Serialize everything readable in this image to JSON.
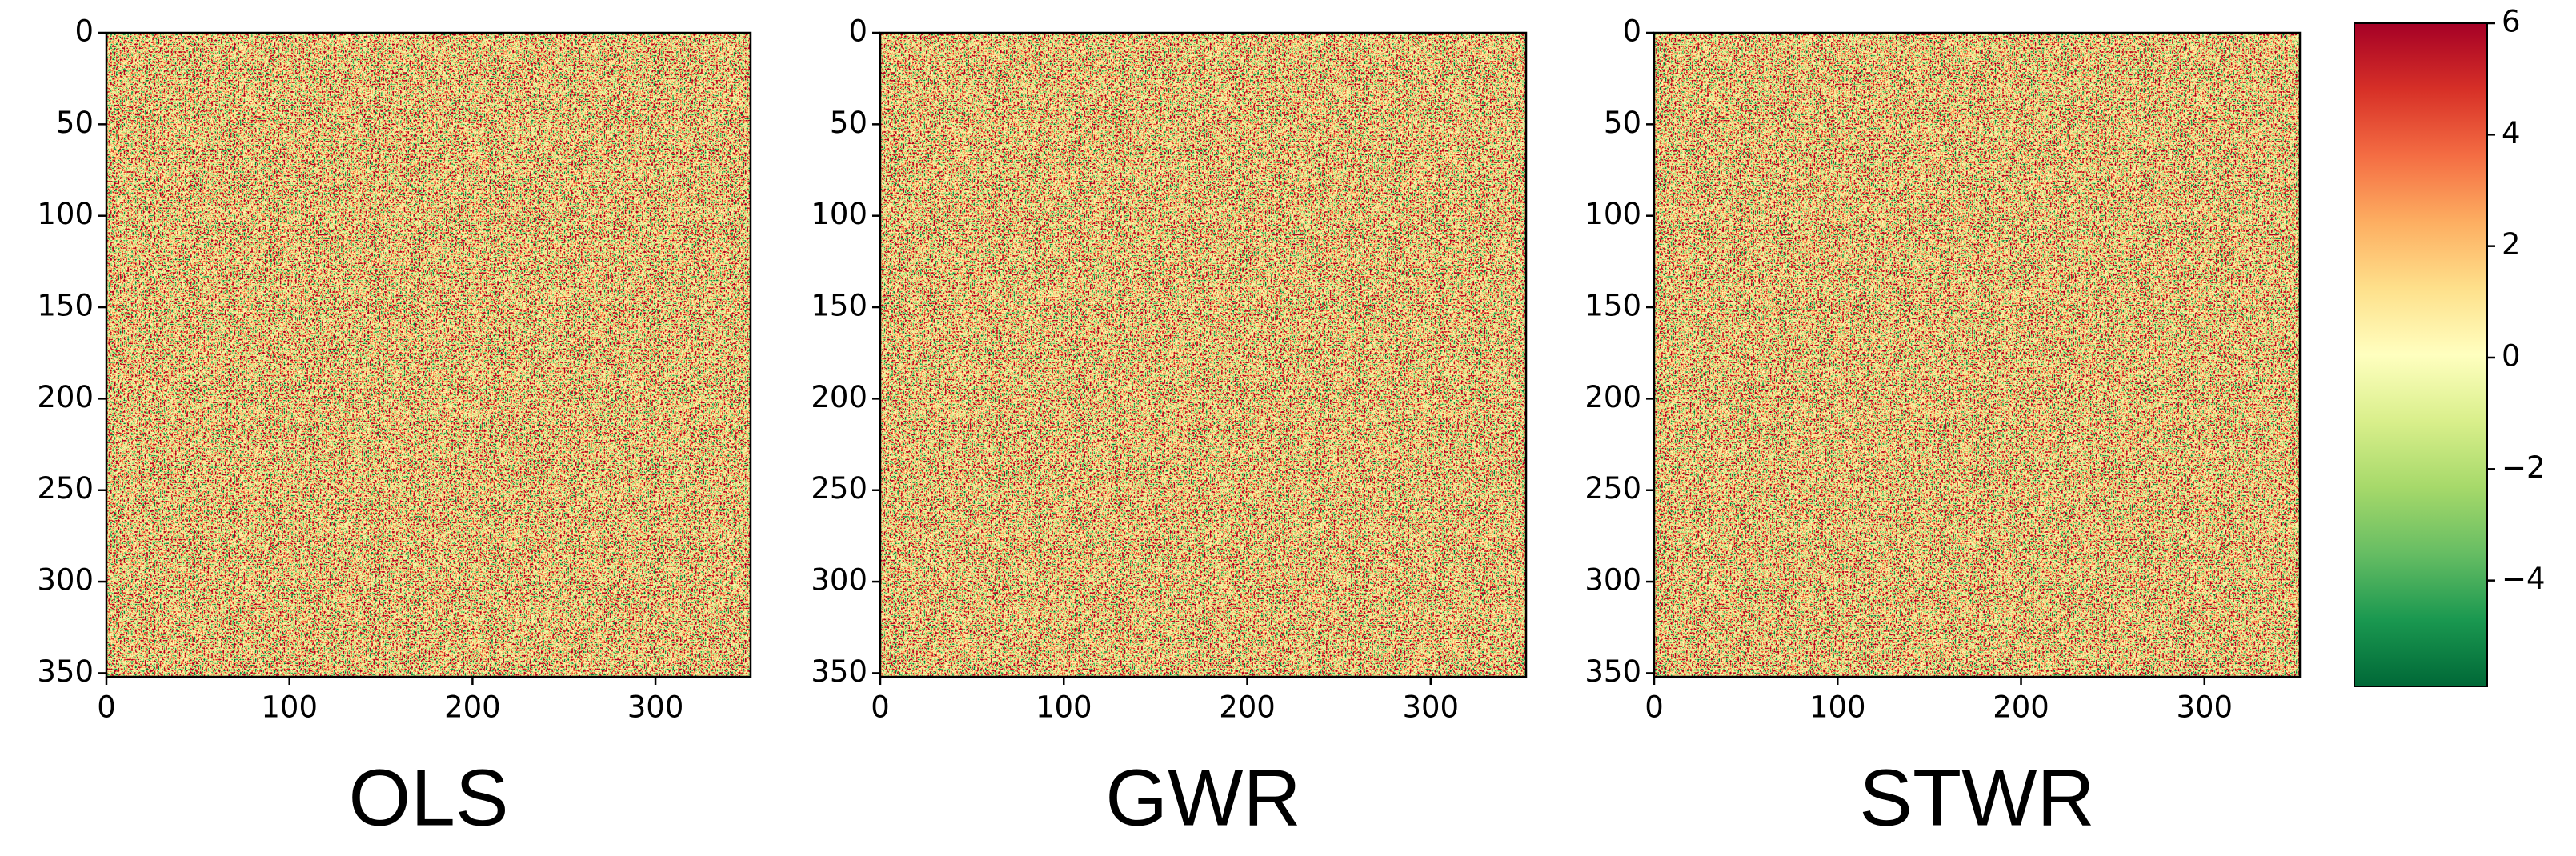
{
  "chart_data": [
    {
      "type": "heatmap",
      "title": "OLS",
      "xlim": [
        0,
        352
      ],
      "ylim": [
        0,
        352
      ],
      "xticks": [
        0,
        100,
        200,
        300
      ],
      "yticks": [
        0,
        50,
        100,
        150,
        200,
        250,
        300,
        350
      ]
    },
    {
      "type": "heatmap",
      "title": "GWR",
      "xlim": [
        0,
        352
      ],
      "ylim": [
        0,
        352
      ],
      "xticks": [
        0,
        100,
        200,
        300
      ],
      "yticks": [
        0,
        50,
        100,
        150,
        200,
        250,
        300,
        350
      ]
    },
    {
      "type": "heatmap",
      "title": "STWR",
      "xlim": [
        0,
        352
      ],
      "ylim": [
        0,
        352
      ],
      "xticks": [
        0,
        100,
        200,
        300
      ],
      "yticks": [
        0,
        50,
        100,
        150,
        200,
        250,
        300,
        350
      ]
    }
  ],
  "colorbar": {
    "clim": [
      -5.9,
      6
    ],
    "ticks": [
      {
        "value": -4,
        "label": "−4"
      },
      {
        "value": -2,
        "label": "−2"
      },
      0,
      2,
      4,
      6
    ],
    "colormap": [
      "#006837",
      "#1a9850",
      "#66bd63",
      "#a6d96a",
      "#d9ef8b",
      "#ffffbf",
      "#fee08b",
      "#fdae61",
      "#f46d43",
      "#d73027",
      "#a50026"
    ]
  }
}
